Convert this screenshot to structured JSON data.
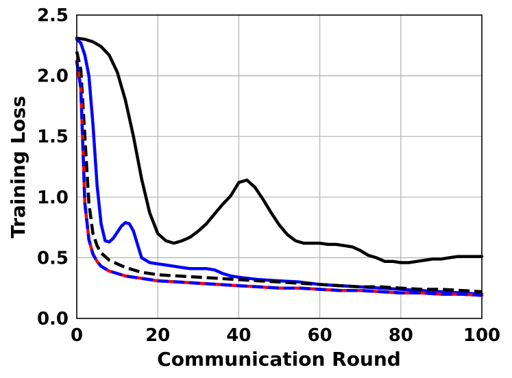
{
  "chart_data": {
    "type": "line",
    "title": "",
    "xlabel": "Communication Round",
    "ylabel": "Training Loss",
    "xlim": [
      0,
      100
    ],
    "ylim": [
      0.0,
      2.5
    ],
    "grid": true,
    "xticks": [
      "0",
      "20",
      "40",
      "60",
      "80",
      "100"
    ],
    "yticks": [
      "0.0",
      "0.5",
      "1.0",
      "1.5",
      "2.0",
      "2.5"
    ],
    "series": [
      {
        "color": "#000000",
        "style": "solid",
        "x": [
          0,
          2,
          4,
          6,
          8,
          10,
          12,
          14,
          16,
          18,
          20,
          22,
          24,
          26,
          28,
          30,
          32,
          34,
          36,
          38,
          40,
          42,
          44,
          46,
          48,
          50,
          52,
          54,
          56,
          58,
          60,
          62,
          64,
          66,
          68,
          70,
          72,
          74,
          76,
          78,
          80,
          82,
          84,
          86,
          88,
          90,
          92,
          94,
          96,
          98,
          100
        ],
        "y": [
          2.31,
          2.3,
          2.28,
          2.24,
          2.17,
          2.03,
          1.8,
          1.5,
          1.15,
          0.87,
          0.7,
          0.64,
          0.62,
          0.64,
          0.67,
          0.72,
          0.78,
          0.86,
          0.94,
          1.01,
          1.12,
          1.14,
          1.08,
          0.98,
          0.87,
          0.77,
          0.69,
          0.64,
          0.62,
          0.62,
          0.62,
          0.61,
          0.61,
          0.6,
          0.59,
          0.56,
          0.52,
          0.5,
          0.47,
          0.47,
          0.46,
          0.46,
          0.47,
          0.48,
          0.49,
          0.49,
          0.5,
          0.51,
          0.51,
          0.51,
          0.51
        ]
      },
      {
        "color": "#0000ff",
        "style": "solid",
        "x": [
          0,
          1,
          2,
          3,
          4,
          5,
          6,
          7,
          8,
          9,
          10,
          11,
          12,
          13,
          14,
          15,
          16,
          18,
          20,
          22,
          24,
          26,
          28,
          30,
          32,
          34,
          36,
          38,
          40,
          45,
          50,
          55,
          60,
          65,
          70,
          75,
          80,
          85,
          90,
          95,
          100
        ],
        "y": [
          2.3,
          2.27,
          2.17,
          2.0,
          1.6,
          1.1,
          0.78,
          0.64,
          0.63,
          0.66,
          0.71,
          0.76,
          0.79,
          0.78,
          0.72,
          0.61,
          0.5,
          0.46,
          0.45,
          0.44,
          0.43,
          0.42,
          0.41,
          0.41,
          0.41,
          0.4,
          0.37,
          0.35,
          0.34,
          0.32,
          0.31,
          0.3,
          0.28,
          0.27,
          0.26,
          0.25,
          0.24,
          0.23,
          0.22,
          0.21,
          0.2
        ]
      },
      {
        "color": "#000000",
        "style": "dashed",
        "x": [
          0,
          1,
          2,
          3,
          4,
          5,
          6,
          7,
          8,
          10,
          12,
          14,
          16,
          18,
          20,
          25,
          30,
          35,
          40,
          45,
          50,
          55,
          60,
          65,
          70,
          75,
          80,
          85,
          90,
          95,
          100
        ],
        "y": [
          2.2,
          2.05,
          1.5,
          0.95,
          0.7,
          0.6,
          0.54,
          0.51,
          0.48,
          0.45,
          0.42,
          0.4,
          0.38,
          0.37,
          0.36,
          0.35,
          0.34,
          0.33,
          0.32,
          0.31,
          0.3,
          0.29,
          0.28,
          0.27,
          0.26,
          0.26,
          0.25,
          0.24,
          0.24,
          0.23,
          0.22
        ]
      },
      {
        "color": "#ff0000",
        "style": "solid",
        "x": [
          0,
          1,
          2,
          3,
          4,
          5,
          6,
          7,
          8,
          10,
          12,
          14,
          16,
          18,
          20,
          25,
          30,
          35,
          40,
          45,
          50,
          55,
          60,
          65,
          70,
          75,
          80,
          85,
          90,
          95,
          100
        ],
        "y": [
          2.12,
          1.9,
          0.95,
          0.65,
          0.53,
          0.47,
          0.43,
          0.41,
          0.39,
          0.37,
          0.35,
          0.34,
          0.33,
          0.32,
          0.31,
          0.3,
          0.29,
          0.28,
          0.27,
          0.26,
          0.25,
          0.25,
          0.24,
          0.23,
          0.23,
          0.22,
          0.21,
          0.21,
          0.2,
          0.2,
          0.19
        ]
      },
      {
        "color": "#0000ff",
        "style": "dashed",
        "x": [
          0,
          1,
          2,
          3,
          4,
          5,
          6,
          7,
          8,
          10,
          12,
          14,
          16,
          18,
          20,
          25,
          30,
          35,
          40,
          45,
          50,
          55,
          60,
          65,
          70,
          75,
          80,
          85,
          90,
          95,
          100
        ],
        "y": [
          2.12,
          1.9,
          0.95,
          0.65,
          0.53,
          0.47,
          0.43,
          0.41,
          0.39,
          0.37,
          0.35,
          0.34,
          0.33,
          0.32,
          0.31,
          0.3,
          0.29,
          0.28,
          0.27,
          0.26,
          0.25,
          0.25,
          0.24,
          0.23,
          0.23,
          0.22,
          0.21,
          0.21,
          0.2,
          0.2,
          0.19
        ]
      }
    ]
  }
}
